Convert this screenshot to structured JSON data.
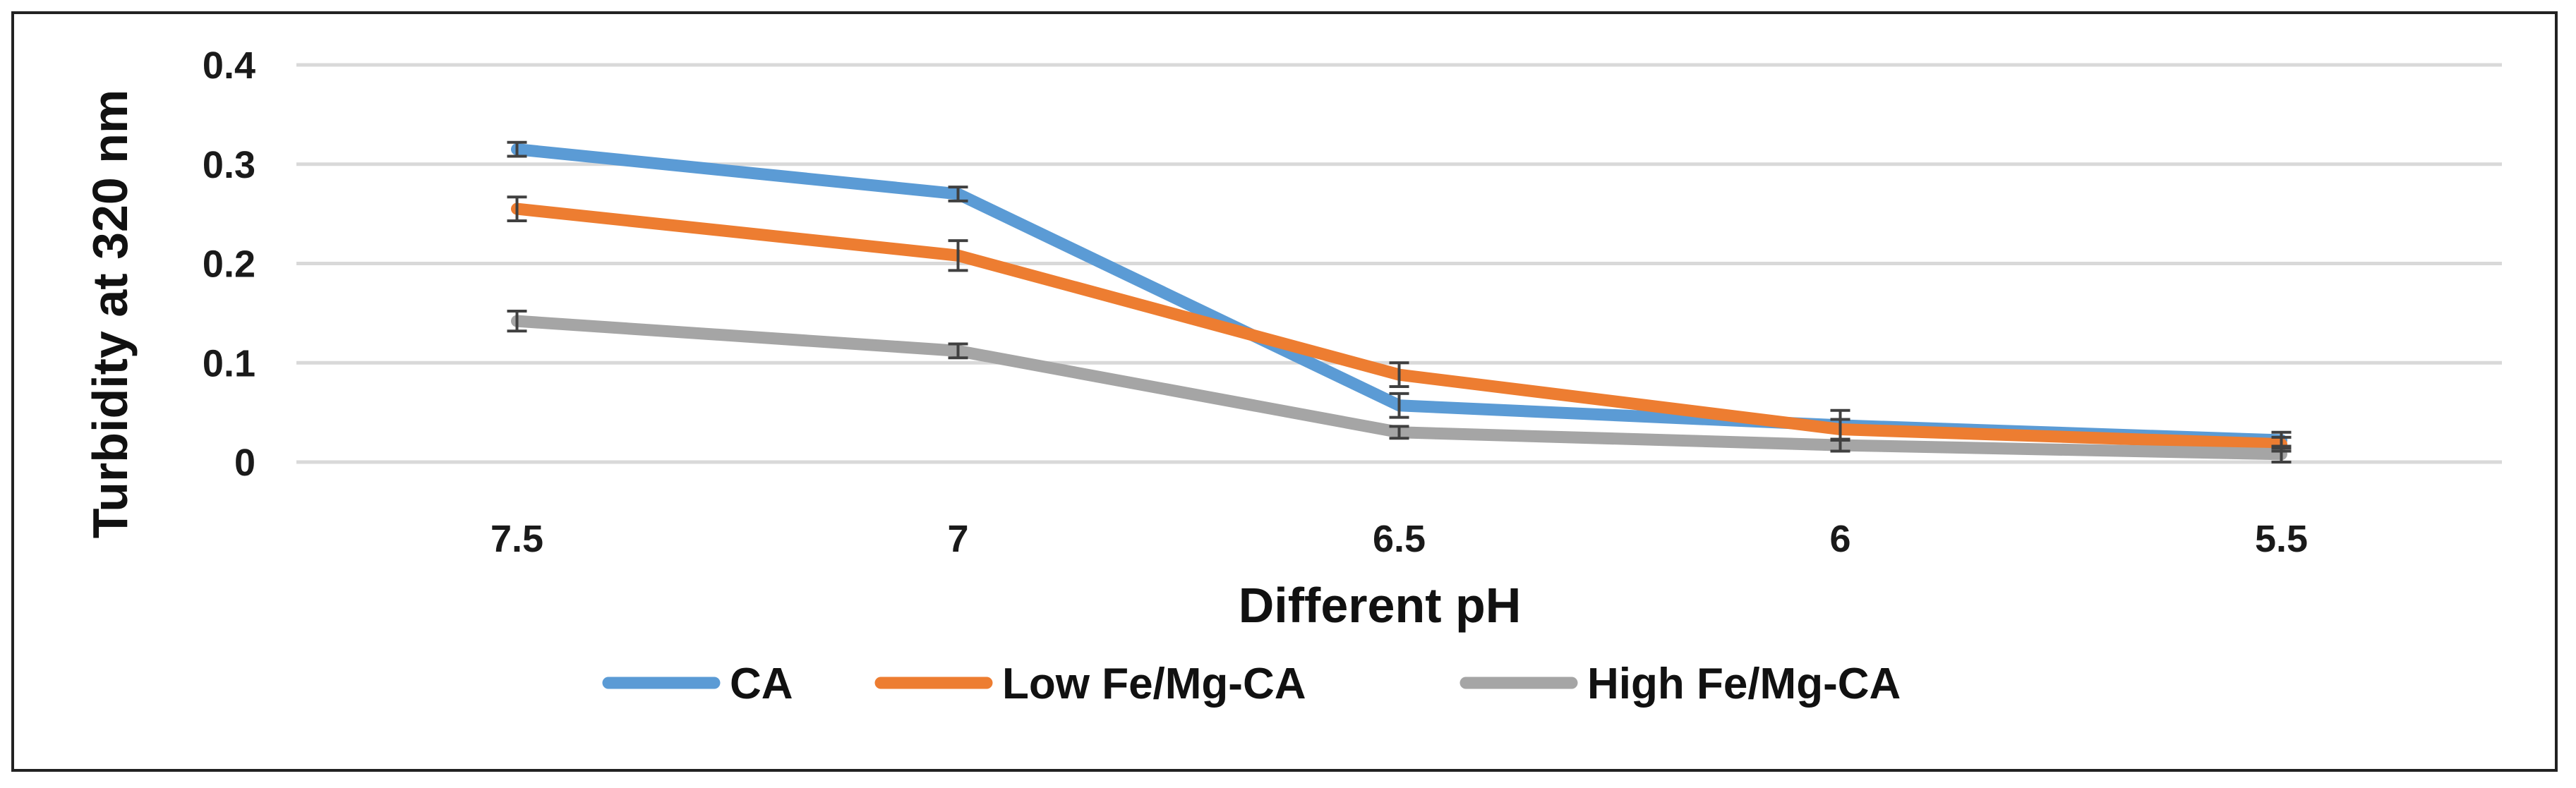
{
  "chart_data": {
    "type": "line",
    "title": "",
    "xlabel": "Different pH",
    "ylabel": "Turbidity at 320 nm",
    "categories": [
      "7.5",
      "7",
      "6.5",
      "6",
      "5.5"
    ],
    "ylim": [
      0,
      0.4
    ],
    "yticks": [
      "0",
      "0.1",
      "0.2",
      "0.3",
      "0.4"
    ],
    "grid": true,
    "legend": "bottom",
    "series": [
      {
        "name": "CA",
        "color": "#5B9BD5",
        "values": [
          0.315,
          0.27,
          0.057,
          0.037,
          0.022
        ],
        "errors": [
          0.007,
          0.007,
          0.012,
          0.015,
          0.008
        ]
      },
      {
        "name": "Low Fe/Mg-CA",
        "color": "#ED7D31",
        "values": [
          0.255,
          0.208,
          0.088,
          0.033,
          0.018
        ],
        "errors": [
          0.012,
          0.015,
          0.012,
          0.01,
          0.007
        ]
      },
      {
        "name": "High Fe/Mg-CA",
        "color": "#A5A5A5",
        "values": [
          0.142,
          0.112,
          0.03,
          0.017,
          0.008
        ],
        "errors": [
          0.01,
          0.007,
          0.006,
          0.006,
          0.008
        ]
      }
    ]
  }
}
